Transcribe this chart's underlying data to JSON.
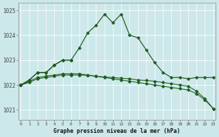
{
  "title": "Graphe pression niveau de la mer (hPa)",
  "background_color": "#cce8ea",
  "grid_color_major": "#ffffff",
  "grid_color_minor": "#f0c8c8",
  "line_color": "#1e5c1e",
  "x_values": [
    0,
    1,
    2,
    3,
    4,
    5,
    6,
    7,
    8,
    9,
    10,
    11,
    12,
    13,
    14,
    15,
    16,
    17,
    18,
    19,
    20,
    21,
    22,
    23
  ],
  "series1": [
    1022.0,
    1022.2,
    1022.5,
    1022.5,
    1022.8,
    1023.0,
    1023.0,
    1023.5,
    1024.1,
    1024.4,
    1024.85,
    1024.5,
    1024.85,
    1024.0,
    1023.9,
    1023.4,
    1022.9,
    1022.5,
    1022.3,
    1022.3,
    1022.25,
    1022.3,
    1022.3,
    1022.3
  ],
  "series2_x": [
    0,
    1,
    2,
    3,
    4,
    5,
    6
  ],
  "series2_y": [
    1022.0,
    1022.2,
    1022.5,
    1022.5,
    1022.8,
    1023.0,
    1023.0
  ],
  "series3_x": [
    0,
    1,
    2,
    3,
    4,
    5,
    6,
    7,
    8,
    9,
    10,
    11,
    12,
    13,
    14,
    15,
    16,
    17,
    18,
    19,
    20,
    21,
    22,
    23
  ],
  "series3_y": [
    1022.0,
    1022.15,
    1022.3,
    1022.35,
    1022.4,
    1022.45,
    1022.45,
    1022.45,
    1022.4,
    1022.35,
    1022.3,
    1022.25,
    1022.2,
    1022.15,
    1022.1,
    1022.05,
    1022.0,
    1021.95,
    1021.9,
    1021.85,
    1021.8,
    1021.65,
    1021.4,
    1021.05
  ],
  "series4_x": [
    0,
    1,
    2,
    3,
    4,
    5,
    6,
    7,
    8,
    9,
    10,
    11,
    12,
    13,
    14,
    15,
    16,
    17,
    18,
    19,
    20,
    21,
    22,
    23
  ],
  "series4_y": [
    1022.0,
    1022.1,
    1022.25,
    1022.3,
    1022.35,
    1022.4,
    1022.4,
    1022.4,
    1022.38,
    1022.35,
    1022.32,
    1022.3,
    1022.27,
    1022.25,
    1022.2,
    1022.18,
    1022.15,
    1022.1,
    1022.05,
    1022.0,
    1021.95,
    1021.75,
    1021.45,
    1021.05
  ],
  "ylim": [
    1020.6,
    1025.3
  ],
  "yticks": [
    1021,
    1022,
    1023,
    1024,
    1025
  ],
  "xlim": [
    -0.3,
    23.3
  ],
  "marker": "D",
  "marker_size": 2.5
}
